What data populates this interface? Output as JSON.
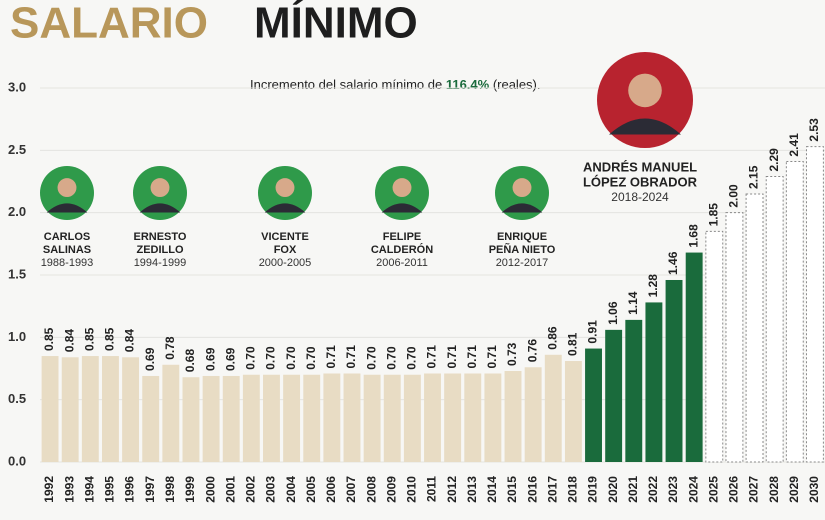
{
  "chart_data": {
    "type": "bar",
    "title": [
      "SALARIO",
      "MÍNIMO"
    ],
    "annotation": [
      "Incremento",
      " del salario mínimo de ",
      "116.4%",
      " (reales)."
    ],
    "categories": [
      "1992",
      "1993",
      "1994",
      "1995",
      "1996",
      "1997",
      "1998",
      "1999",
      "2000",
      "2001",
      "2002",
      "2003",
      "2004",
      "2005",
      "2006",
      "2007",
      "2008",
      "2009",
      "2010",
      "2011",
      "2012",
      "2013",
      "2014",
      "2015",
      "2016",
      "2017",
      "2018",
      "2019",
      "2020",
      "2021",
      "2022",
      "2023",
      "2024",
      "2025",
      "2026",
      "2027",
      "2028",
      "2029",
      "2030"
    ],
    "values": [
      0.85,
      0.84,
      0.85,
      0.85,
      0.84,
      0.69,
      0.78,
      0.68,
      0.69,
      0.69,
      0.7,
      0.7,
      0.7,
      0.7,
      0.71,
      0.71,
      0.7,
      0.7,
      0.7,
      0.71,
      0.71,
      0.71,
      0.71,
      0.73,
      0.76,
      0.86,
      0.81,
      0.91,
      1.06,
      1.14,
      1.28,
      1.46,
      1.68,
      1.85,
      2.0,
      2.15,
      2.29,
      2.41,
      2.53
    ],
    "value_labels": [
      "0.85",
      "0.84",
      "0.85",
      "0.85",
      "0.84",
      "0.69",
      "0.78",
      "0.68",
      "0.69",
      "0.69",
      "0.70",
      "0.70",
      "0.70",
      "0.70",
      "0.71",
      "0.71",
      "0.70",
      "0.70",
      "0.70",
      "0.71",
      "0.71",
      "0.71",
      "0.71",
      "0.73",
      "0.76",
      "0.86",
      "0.81",
      "0.91",
      "1.06",
      "1.14",
      "1.28",
      "1.46",
      "1.68",
      "1.85",
      "2.00",
      "2.15",
      "2.29",
      "2.41",
      "2.53"
    ],
    "colors": [
      "#e8dcc4",
      "#e8dcc4",
      "#e8dcc4",
      "#e8dcc4",
      "#e8dcc4",
      "#e8dcc4",
      "#e8dcc4",
      "#e8dcc4",
      "#e8dcc4",
      "#e8dcc4",
      "#e8dcc4",
      "#e8dcc4",
      "#e8dcc4",
      "#e8dcc4",
      "#e8dcc4",
      "#e8dcc4",
      "#e8dcc4",
      "#e8dcc4",
      "#e8dcc4",
      "#e8dcc4",
      "#e8dcc4",
      "#e8dcc4",
      "#e8dcc4",
      "#e8dcc4",
      "#e8dcc4",
      "#e8dcc4",
      "#e8dcc4",
      "#1a6b3c",
      "#1a6b3c",
      "#1a6b3c",
      "#1a6b3c",
      "#1a6b3c",
      "#1a6b3c",
      "#ffffff",
      "#ffffff",
      "#ffffff",
      "#ffffff",
      "#ffffff",
      "#ffffff"
    ],
    "dashed": [
      false,
      false,
      false,
      false,
      false,
      false,
      false,
      false,
      false,
      false,
      false,
      false,
      false,
      false,
      false,
      false,
      false,
      false,
      false,
      false,
      false,
      false,
      false,
      false,
      false,
      false,
      false,
      false,
      false,
      false,
      false,
      false,
      false,
      true,
      true,
      true,
      true,
      true,
      true
    ],
    "ylim": [
      0,
      3.0
    ],
    "yticks": [
      {
        "value": 0,
        "label": "0.0"
      },
      {
        "value": 0.5,
        "label": "0.5"
      },
      {
        "value": 1.0,
        "label": "1.0"
      },
      {
        "value": 1.5,
        "label": "1.5"
      },
      {
        "value": 2.0,
        "label": "2.0"
      },
      {
        "value": 2.5,
        "label": "2.5"
      },
      {
        "value": 3.0,
        "label": "3.0"
      }
    ],
    "grid": true,
    "presidents": [
      {
        "name": [
          "CARLOS",
          "SALINAS"
        ],
        "term": "1988-1993"
      },
      {
        "name": [
          "ERNESTO",
          "ZEDILLO"
        ],
        "term": "1994-1999"
      },
      {
        "name": [
          "VICENTE",
          "FOX"
        ],
        "term": "2000-2005"
      },
      {
        "name": [
          "FELIPE",
          "CALDERÓN"
        ],
        "term": "2006-2011"
      },
      {
        "name": [
          "ENRIQUE",
          "PEÑA NIETO"
        ],
        "term": "2012-2017"
      },
      {
        "name": [
          "ANDRÉS MANUEL",
          "LÓPEZ OBRADOR"
        ],
        "term": "2018-2024"
      }
    ]
  }
}
